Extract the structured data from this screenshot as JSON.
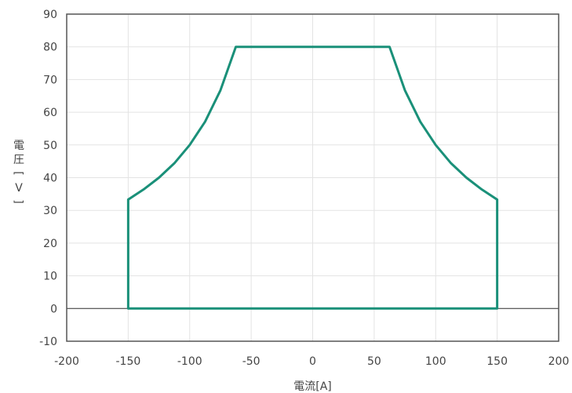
{
  "chart_data": {
    "type": "line",
    "xlabel": "電流[A]",
    "ylabel": "電圧[V]",
    "xlim": [
      -200,
      200
    ],
    "ylim": [
      -10,
      90
    ],
    "x_ticks": [
      -200,
      -150,
      -100,
      -50,
      0,
      50,
      100,
      150,
      200
    ],
    "y_ticks": [
      -10,
      0,
      10,
      20,
      30,
      40,
      50,
      60,
      70,
      80,
      90
    ],
    "grid": true,
    "series": [
      {
        "color": "#1a9079",
        "x": [
          -150,
          -150,
          -137.5,
          -125,
          -112.5,
          -100,
          -87.5,
          -75,
          -62.5,
          62.5,
          75,
          87.5,
          100,
          112.5,
          125,
          137.5,
          150,
          150,
          -150
        ],
        "y": [
          0,
          33.3,
          36.4,
          40,
          44.4,
          50,
          57.1,
          66.7,
          80,
          80,
          66.7,
          57.1,
          50,
          44.4,
          40,
          36.4,
          33.3,
          0,
          0
        ]
      }
    ]
  }
}
